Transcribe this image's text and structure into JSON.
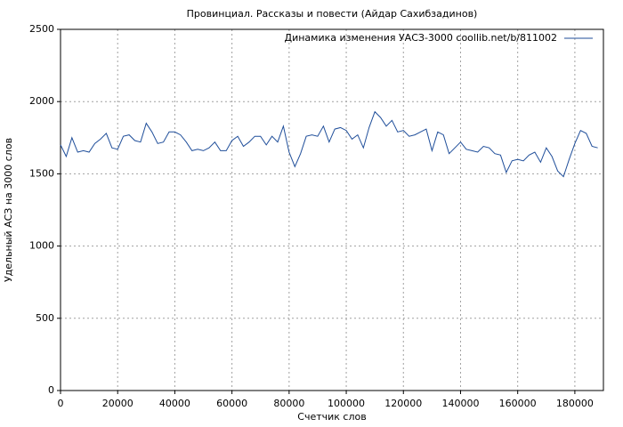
{
  "chart_data": {
    "type": "line",
    "title": "Провинциал. Рассказы и повести (Айдар Сахибзадинов)",
    "x_label": "Счетчик слов",
    "y_label": "Удельный АСЗ на 3000 слов",
    "x": [
      0,
      2000,
      4000,
      6000,
      8000,
      10000,
      12000,
      14000,
      16000,
      18000,
      20000,
      22000,
      24000,
      26000,
      28000,
      30000,
      32000,
      34000,
      36000,
      38000,
      40000,
      42000,
      44000,
      46000,
      48000,
      50000,
      52000,
      54000,
      56000,
      58000,
      60000,
      62000,
      64000,
      66000,
      68000,
      70000,
      72000,
      74000,
      76000,
      78000,
      80000,
      82000,
      84000,
      86000,
      88000,
      90000,
      92000,
      94000,
      96000,
      98000,
      100000,
      102000,
      104000,
      106000,
      108000,
      110000,
      112000,
      114000,
      116000,
      118000,
      120000,
      122000,
      124000,
      126000,
      128000,
      130000,
      132000,
      134000,
      136000,
      138000,
      140000,
      142000,
      144000,
      146000,
      148000,
      150000,
      152000,
      154000,
      156000,
      158000,
      160000,
      162000,
      164000,
      166000,
      168000,
      170000,
      172000,
      174000,
      176000,
      178000,
      180000,
      182000,
      184000,
      186000,
      188000
    ],
    "series": [
      {
        "name": "Динамика изменения УАСЗ-3000 coollib.net/b/811002",
        "color": "#1f4e9a",
        "values": [
          1700,
          1620,
          1750,
          1650,
          1660,
          1650,
          1710,
          1740,
          1780,
          1680,
          1670,
          1760,
          1770,
          1730,
          1720,
          1850,
          1790,
          1710,
          1720,
          1790,
          1790,
          1770,
          1720,
          1660,
          1670,
          1660,
          1680,
          1720,
          1660,
          1660,
          1730,
          1760,
          1690,
          1720,
          1760,
          1760,
          1700,
          1760,
          1720,
          1830,
          1650,
          1550,
          1640,
          1760,
          1770,
          1760,
          1830,
          1720,
          1810,
          1820,
          1800,
          1740,
          1770,
          1680,
          1820,
          1930,
          1890,
          1830,
          1870,
          1790,
          1800,
          1760,
          1770,
          1790,
          1810,
          1660,
          1790,
          1770,
          1640,
          1680,
          1720,
          1670,
          1660,
          1650,
          1690,
          1680,
          1640,
          1630,
          1510,
          1590,
          1600,
          1590,
          1630,
          1650,
          1580,
          1680,
          1620,
          1520,
          1480,
          1600,
          1710,
          1800,
          1780,
          1690,
          1680
        ]
      }
    ],
    "xlim": [
      0,
      190000
    ],
    "ylim": [
      0,
      2500
    ],
    "xticks": [
      0,
      20000,
      40000,
      60000,
      80000,
      100000,
      120000,
      140000,
      160000,
      180000
    ],
    "yticks": [
      0,
      500,
      1000,
      1500,
      2000,
      2500
    ],
    "grid": true,
    "legend": "upper right"
  }
}
